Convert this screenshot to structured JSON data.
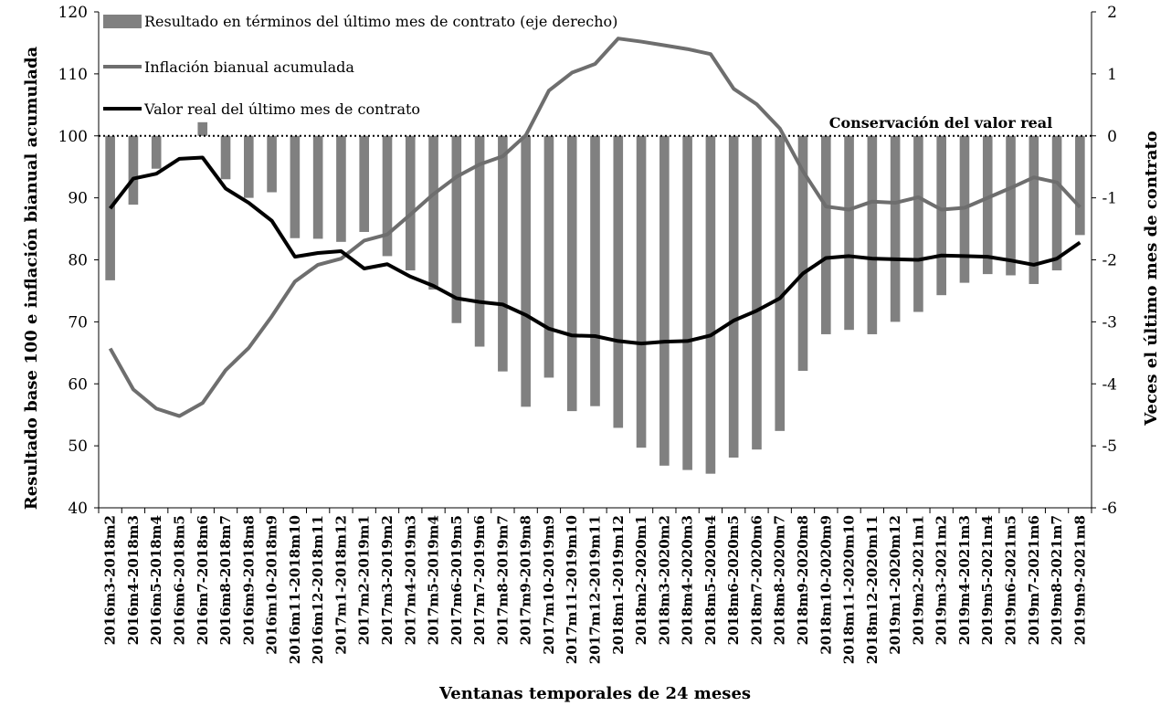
{
  "chart_data": {
    "type": "bar+line",
    "xlabel": "Ventanas temporales de 24 meses",
    "ylabel_left": "Resultado base 100 e inflación bianual acumulada",
    "ylabel_right": "Veces el último mes de contrato",
    "ylim_left": [
      40,
      120
    ],
    "yticks_left": [
      "40",
      "50",
      "60",
      "70",
      "80",
      "90",
      "100",
      "110",
      "120"
    ],
    "ylim_right": [
      -6,
      2
    ],
    "yticks_right": [
      "-6",
      "-5",
      "-4",
      "-3",
      "-2",
      "-1",
      "0",
      "1",
      "2"
    ],
    "annotation": "Conservación del valor real",
    "reference_line_value": 100,
    "categories": [
      "2016m3-2018m2",
      "2016m4-2018m3",
      "2016m5-2018m4",
      "2016m6-2018m5",
      "2016m7-2018m6",
      "2016m8-2018m7",
      "2016m9-2018m8",
      "2016m10-2018m9",
      "2016m11-2018m10",
      "2016m12-2018m11",
      "2017m1-2018m12",
      "2017m2-2019m1",
      "2017m3-2019m2",
      "2017m4-2019m3",
      "2017m5-2019m4",
      "2017m6-2019m5",
      "2017m7-2019m6",
      "2017m8-2019m7",
      "2017m9-2019m8",
      "2017m10-2019m9",
      "2017m11-2019m10",
      "2017m12-2019m11",
      "2018m1-2019m12",
      "2018m2-2020m1",
      "2018m3-2020m2",
      "2018m4-2020m3",
      "2018m5-2020m4",
      "2018m6-2020m5",
      "2018m7-2020m6",
      "2018m8-2020m7",
      "2018m9-2020m8",
      "2018m10-2020m9",
      "2018m11-2020m10",
      "2018m12-2020m11",
      "2019m1-2020m12",
      "2019m2-2021m1",
      "2019m3-2021m2",
      "2019m4-2021m3",
      "2019m5-2021m4",
      "2019m6-2021m5",
      "2019m7-2021m6",
      "2019m8-2021m7",
      "2019m9-2021m8"
    ],
    "series": [
      {
        "name": "Resultado en términos del último mes de contrato (eje derecho)",
        "type": "bar",
        "axis": "right",
        "color": "#808080",
        "values": [
          -2.33,
          -1.11,
          -0.53,
          0.0,
          0.22,
          -0.7,
          -1.0,
          -0.91,
          -1.65,
          -1.66,
          -1.71,
          -1.55,
          -1.94,
          -2.17,
          -2.48,
          -3.02,
          -3.4,
          -3.8,
          -4.37,
          -3.9,
          -4.44,
          -4.36,
          -4.71,
          -5.03,
          -5.32,
          -5.39,
          -5.45,
          -5.19,
          -5.06,
          -4.76,
          -3.79,
          -3.2,
          -3.13,
          -3.2,
          -3.0,
          -2.84,
          -2.57,
          -2.37,
          -2.23,
          -2.25,
          -2.39,
          -2.17,
          -1.6
        ]
      },
      {
        "name": "Inflación bianual acumulada",
        "type": "line",
        "axis": "left",
        "color": "#6e6e6e",
        "values": [
          65.7,
          59.1,
          56.0,
          54.8,
          56.9,
          62.2,
          65.8,
          70.9,
          76.5,
          79.2,
          80.2,
          83.1,
          84.1,
          87.3,
          90.6,
          93.4,
          95.4,
          96.7,
          100.1,
          107.3,
          110.2,
          111.6,
          115.7,
          115.2,
          114.6,
          114.0,
          113.2,
          107.6,
          105.1,
          101.2,
          94.3,
          88.6,
          88.1,
          89.4,
          89.2,
          90.1,
          88.1,
          88.4,
          90.0,
          91.6,
          93.3,
          92.5,
          88.5
        ]
      },
      {
        "name": "Valor real del último mes de contrato",
        "type": "line",
        "axis": "left",
        "color": "#000000",
        "values": [
          88.3,
          93.1,
          93.9,
          96.3,
          96.5,
          91.5,
          89.2,
          86.3,
          80.5,
          81.1,
          81.4,
          78.6,
          79.3,
          77.3,
          75.8,
          73.8,
          73.2,
          72.8,
          71.1,
          68.9,
          67.8,
          67.7,
          66.9,
          66.5,
          66.8,
          66.9,
          67.8,
          70.2,
          71.8,
          73.8,
          77.8,
          80.3,
          80.6,
          80.2,
          80.1,
          80.0,
          80.7,
          80.6,
          80.5,
          79.9,
          79.2,
          80.2,
          82.8
        ]
      }
    ],
    "legend_position": "top-left",
    "grid": false
  }
}
